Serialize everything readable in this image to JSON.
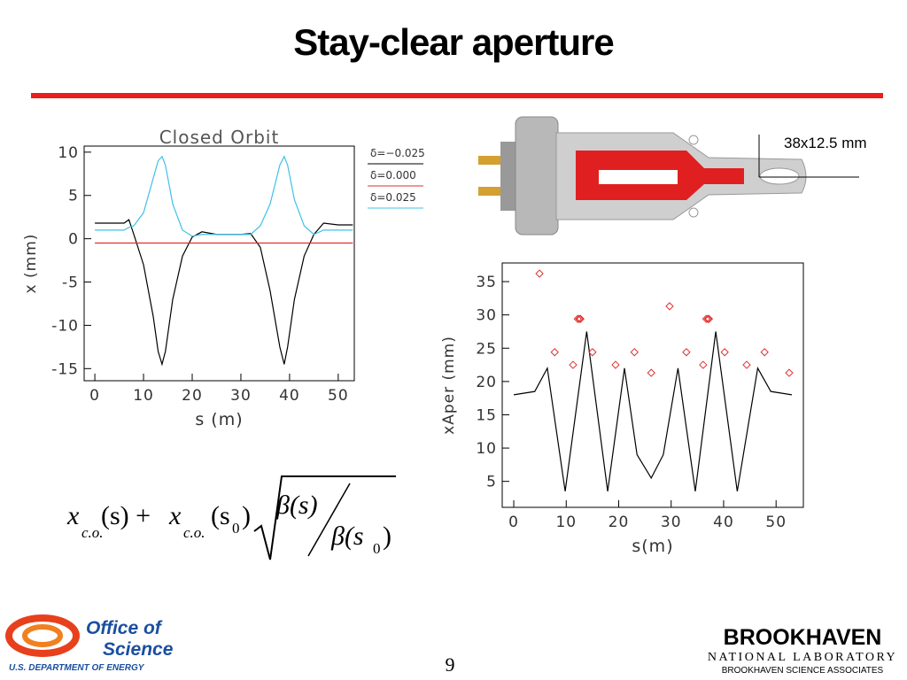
{
  "title": "Stay-clear aperture",
  "annotation": "38x12.5 mm",
  "formula": [
    "x",
    "c.o.",
    "(s) + ",
    "x",
    "c.o.",
    "(s",
    "0",
    ")",
    "β(s)",
    "β(s",
    "0",
    ")"
  ],
  "page_number": "9",
  "logos": {
    "doe": [
      "Office of",
      "Science",
      "U.S. DEPARTMENT OF ENERGY"
    ],
    "bnl": [
      "BROOKHAVEN",
      "NATIONAL LABORATORY",
      "BROOKHAVEN SCIENCE ASSOCIATES"
    ]
  },
  "chart_data": [
    {
      "type": "line",
      "title": "Closed Orbit",
      "x_label": "s (m)",
      "y_label": "x (mm)",
      "xlim": [
        -2.2,
        53.3
      ],
      "ylim": [
        -16.4,
        10.7
      ],
      "xticks": [
        0,
        10,
        20,
        30,
        40,
        50
      ],
      "yticks": [
        -15,
        -10,
        -5,
        0,
        5,
        10
      ],
      "legend": "right",
      "x": [
        0,
        6,
        7,
        8,
        10,
        12,
        13,
        13.8,
        14.5,
        16,
        18,
        20,
        22,
        25,
        30,
        32,
        34,
        36,
        38,
        38.9,
        39.6,
        41,
        43,
        45,
        47,
        50,
        53
      ],
      "series": [
        {
          "name": "δ=−0.025",
          "color": "#000000",
          "values": [
            1.8,
            1.8,
            2.2,
            0.5,
            -3,
            -9,
            -13,
            -14.5,
            -13,
            -7,
            -2,
            0.2,
            0.8,
            0.5,
            0.5,
            0.6,
            -1,
            -6,
            -12.5,
            -14.5,
            -12.5,
            -7,
            -2,
            0.5,
            1.8,
            1.6,
            1.6
          ]
        },
        {
          "name": "δ=0.000",
          "color": "#e03030",
          "values": [
            -0.5,
            -0.5,
            -0.5,
            -0.5,
            -0.5,
            -0.5,
            -0.5,
            -0.5,
            -0.5,
            -0.5,
            -0.5,
            -0.5,
            -0.5,
            -0.5,
            -0.5,
            -0.5,
            -0.5,
            -0.5,
            -0.5,
            -0.5,
            -0.5,
            -0.5,
            -0.5,
            -0.5,
            -0.5,
            -0.5,
            -0.5
          ]
        },
        {
          "name": "δ=0.025",
          "color": "#40c0e8",
          "values": [
            1,
            1,
            1.3,
            1.5,
            3,
            7,
            9,
            9.5,
            8.5,
            4,
            1,
            0.3,
            0.5,
            0.5,
            0.5,
            0.5,
            1.5,
            4,
            8.5,
            9.5,
            8.5,
            4.5,
            1.5,
            0.5,
            1,
            1,
            1
          ]
        }
      ]
    },
    {
      "type": "line",
      "x_label": "s(m)",
      "y_label": "xAper (mm)",
      "xlim": [
        -2.2,
        55.2
      ],
      "ylim": [
        1.1,
        37.8
      ],
      "xticks": [
        0,
        10,
        20,
        30,
        40,
        50
      ],
      "yticks": [
        5,
        10,
        15,
        20,
        25,
        30,
        35
      ],
      "series": [
        {
          "type": "line",
          "color": "#000000",
          "x": [
            0,
            4,
            6.4,
            9.8,
            13.9,
            17.9,
            21.1,
            23.5,
            26.2,
            28.5,
            31.3,
            34.6,
            38.5,
            42.6,
            46.5,
            49,
            53
          ],
          "values": [
            18,
            18.5,
            22,
            3.5,
            27.5,
            3.5,
            22,
            9,
            5.5,
            9,
            22,
            3.5,
            27.5,
            3.5,
            22,
            18.5,
            18
          ]
        },
        {
          "type": "scatter",
          "marker": "diamond",
          "color": "#e03030",
          "x": [
            4.9,
            7.8,
            11.3,
            12.2,
            12.5,
            12.7,
            15,
            19.4,
            23,
            26.2,
            29.7,
            32.9,
            36.1,
            36.7,
            37,
            37.2,
            40.2,
            44.4,
            47.8,
            52.5
          ],
          "values": [
            36.2,
            24.4,
            22.5,
            29.4,
            29.4,
            29.4,
            24.4,
            22.5,
            24.4,
            21.3,
            31.3,
            24.4,
            22.5,
            29.4,
            29.4,
            29.4,
            24.4,
            22.5,
            24.4,
            21.3
          ]
        }
      ]
    }
  ]
}
